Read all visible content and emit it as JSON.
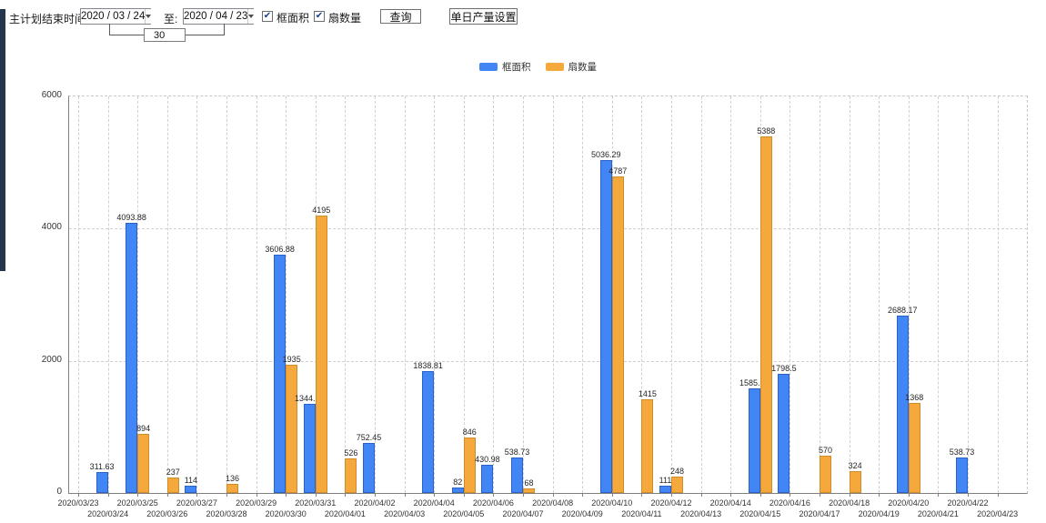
{
  "toolbar": {
    "end_time_label": "主计划结束时间:",
    "date_from": "2020 / 03 / 24",
    "to_label": "至:",
    "date_to": "2020 / 04 / 23",
    "interval_value": "30",
    "frame_area_checkbox_label": "框面积",
    "fan_count_checkbox_label": "扇数量",
    "checkmark": "✔",
    "query_button_label": "查询",
    "daily_output_button_label": "单日产量设置"
  },
  "legend": [
    {
      "id": "frame-area",
      "label": "框面积",
      "color": "#4285F4"
    },
    {
      "id": "fan-count",
      "label": "扇数量",
      "color": "#F5A93C"
    }
  ],
  "chart_data": {
    "type": "bar",
    "title": "",
    "xlabel": "",
    "ylabel": "",
    "ylim": [
      0,
      6000
    ],
    "yticks": [
      0,
      2000,
      4000,
      6000
    ],
    "grid": true,
    "legend_position": "top",
    "categories": [
      "2020/03/23",
      "2020/03/24",
      "2020/03/25",
      "2020/03/26",
      "2020/03/27",
      "2020/03/28",
      "2020/03/29",
      "2020/03/30",
      "2020/03/31",
      "2020/04/01",
      "2020/04/02",
      "2020/04/03",
      "2020/04/04",
      "2020/04/05",
      "2020/04/06",
      "2020/04/07",
      "2020/04/08",
      "2020/04/09",
      "2020/04/10",
      "2020/04/11",
      "2020/04/12",
      "2020/04/13",
      "2020/04/14",
      "2020/04/15",
      "2020/04/16",
      "2020/04/17",
      "2020/04/18",
      "2020/04/19",
      "2020/04/20",
      "2020/04/21",
      "2020/04/22",
      "2020/04/23"
    ],
    "series": [
      {
        "id": "frame-area",
        "name": "框面积",
        "color": "#4285F4",
        "values": [
          null,
          311.63,
          4093.88,
          null,
          114,
          null,
          null,
          3606.88,
          1344.95,
          null,
          752.45,
          null,
          1838.81,
          82,
          430.98,
          538.73,
          null,
          null,
          5036.29,
          null,
          111,
          null,
          null,
          1585.96,
          1798.5,
          null,
          null,
          null,
          2688.17,
          null,
          538.73,
          null
        ]
      },
      {
        "id": "fan-count",
        "name": "扇数量",
        "color": "#F5A93C",
        "values": [
          null,
          null,
          894,
          237,
          null,
          136,
          null,
          1935,
          4195,
          526,
          null,
          null,
          null,
          846,
          null,
          68,
          null,
          null,
          4787,
          1415,
          248,
          null,
          null,
          5388,
          null,
          570,
          324,
          null,
          1368,
          null,
          null,
          null
        ]
      }
    ]
  }
}
